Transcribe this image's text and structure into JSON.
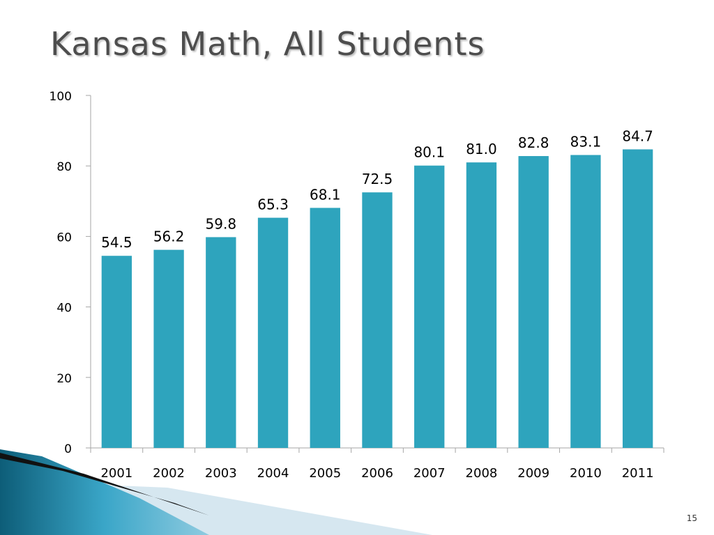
{
  "slide": {
    "title": "Kansas Math, All Students",
    "page_number": "15"
  },
  "colors": {
    "bar": "#2ea4bd",
    "axis": "#a6a6a6",
    "text": "#000000",
    "decor_dark": "#0d5d78",
    "decor_light": "#cfe3ee"
  },
  "chart_data": {
    "type": "bar",
    "title": "",
    "xlabel": "",
    "ylabel": "",
    "categories": [
      "2001",
      "2002",
      "2003",
      "2004",
      "2005",
      "2006",
      "2007",
      "2008",
      "2009",
      "2010",
      "2011"
    ],
    "values": [
      54.5,
      56.2,
      59.8,
      65.3,
      68.1,
      72.5,
      80.1,
      81.0,
      82.8,
      83.1,
      84.7
    ],
    "value_labels": [
      "54.5",
      "56.2",
      "59.8",
      "65.3",
      "68.1",
      "72.5",
      "80.1",
      "81.0",
      "82.8",
      "83.1",
      "84.7"
    ],
    "ylim": [
      0,
      100
    ],
    "yticks": [
      "0",
      "20",
      "40",
      "60",
      "80",
      "100"
    ],
    "grid": false,
    "legend": "none"
  }
}
